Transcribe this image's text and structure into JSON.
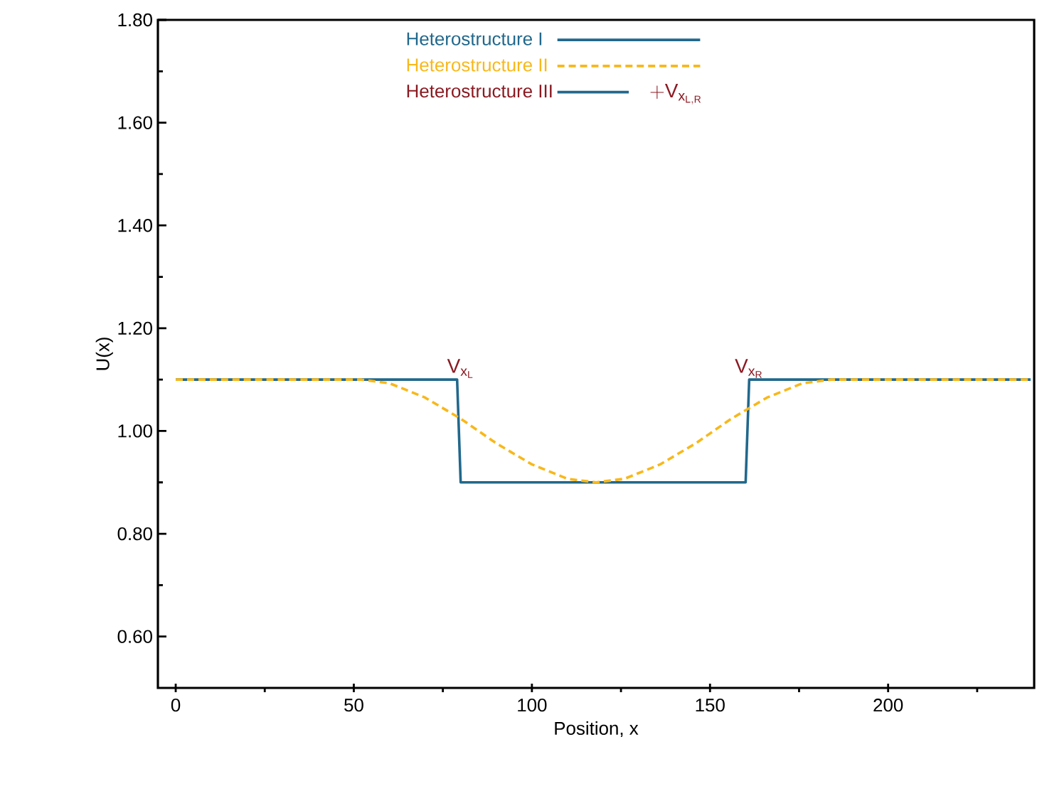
{
  "chart_data": {
    "type": "line",
    "xlabel": "Position, x",
    "ylabel": "U(x)",
    "xlim": [
      -5,
      241
    ],
    "ylim": [
      0.5,
      1.8
    ],
    "xticks": [
      0,
      {
        "value": 25,
        "label": null
      },
      50,
      {
        "value": 75,
        "label": null
      },
      100,
      {
        "value": 125,
        "label": null
      },
      150,
      {
        "value": 175,
        "label": null
      },
      200,
      {
        "value": 225,
        "label": null
      }
    ],
    "yticks": [
      {
        "value": 0.6,
        "label": "0.60"
      },
      {
        "value": 0.7,
        "label": null
      },
      {
        "value": 0.8,
        "label": "0.80"
      },
      {
        "value": 0.9,
        "label": null
      },
      {
        "value": 1.0,
        "label": "1.00"
      },
      {
        "value": 1.1,
        "label": null
      },
      {
        "value": 1.2,
        "label": "1.20"
      },
      {
        "value": 1.3,
        "label": null
      },
      {
        "value": 1.4,
        "label": "1.40"
      },
      {
        "value": 1.5,
        "label": null
      },
      {
        "value": 1.6,
        "label": "1.60"
      },
      {
        "value": 1.7,
        "label": null
      },
      {
        "value": 1.8,
        "label": "1.80"
      }
    ],
    "legend": "top",
    "grid": false,
    "marker": "none",
    "series": [
      {
        "name": "Heterostructure I",
        "color": "#21688c",
        "line_style": "solid",
        "x": [
          0,
          79,
          80,
          160,
          161,
          240
        ],
        "values": [
          1.1,
          1.1,
          0.9,
          0.9,
          1.1,
          1.1
        ]
      },
      {
        "name": "Heterostructure II",
        "color": "#f8b81a",
        "line_style": "dashed",
        "x": [
          0,
          52,
          60,
          70,
          80,
          90,
          100,
          110,
          118,
          126,
          136,
          146,
          156,
          166,
          176,
          184,
          240
        ],
        "values": [
          1.1,
          1.1,
          1.093,
          1.065,
          1.024,
          0.976,
          0.935,
          0.907,
          0.9,
          0.907,
          0.935,
          0.976,
          1.024,
          1.065,
          1.093,
          1.1,
          1.1
        ]
      },
      {
        "name": "Heterostructure III",
        "color": "#21688c",
        "line_style": "solid",
        "values": [
          null
        ]
      }
    ],
    "annotations": [
      {
        "text": "\\mathrm{V}_{\\mathrm{x}_{\\mathrm{L}}}",
        "x": 80,
        "y": 1.1
      },
      {
        "text": "\\mathrm{V}_{\\mathrm{x}_{\\mathrm{R}}}",
        "x": 161,
        "y": 1.1
      },
      "+ \\mathrm{V}_{\\mathrm{x}_{\\mathrm{L,R}}}"
    ]
  }
}
